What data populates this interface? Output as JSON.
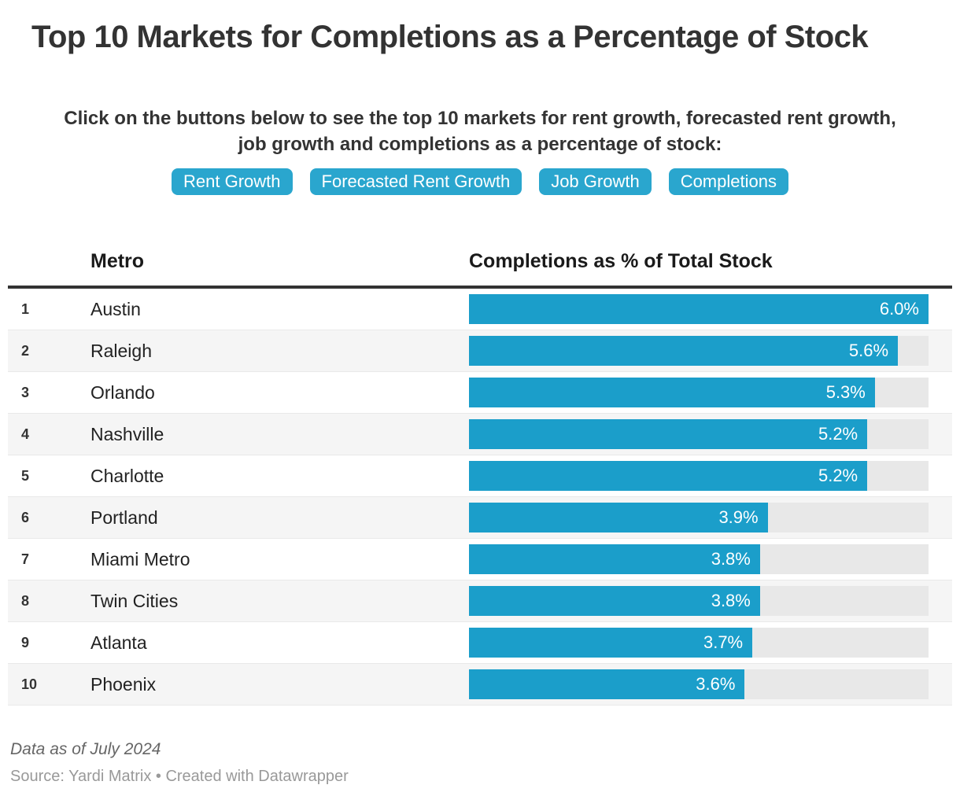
{
  "header": {
    "title": "Top 10 Markets for Completions as a Percentage of Stock",
    "subtitle_lines": [
      "Click on the buttons below to see the top 10 markets for rent growth, forecasted rent growth,",
      "job growth and completions as a percentage of stock:"
    ]
  },
  "buttons": [
    "Rent Growth",
    "Forecasted Rent Growth",
    "Job Growth",
    "Completions"
  ],
  "table": {
    "columns": {
      "metro": "Metro",
      "value": "Completions as % of Total Stock"
    },
    "rows": [
      {
        "rank": "1",
        "metro": "Austin",
        "value": 6.0,
        "value_label": "6.0%"
      },
      {
        "rank": "2",
        "metro": "Raleigh",
        "value": 5.6,
        "value_label": "5.6%"
      },
      {
        "rank": "3",
        "metro": "Orlando",
        "value": 5.3,
        "value_label": "5.3%"
      },
      {
        "rank": "4",
        "metro": "Nashville",
        "value": 5.2,
        "value_label": "5.2%"
      },
      {
        "rank": "5",
        "metro": "Charlotte",
        "value": 5.2,
        "value_label": "5.2%"
      },
      {
        "rank": "6",
        "metro": "Portland",
        "value": 3.9,
        "value_label": "3.9%"
      },
      {
        "rank": "7",
        "metro": "Miami Metro",
        "value": 3.8,
        "value_label": "3.8%"
      },
      {
        "rank": "8",
        "metro": "Twin Cities",
        "value": 3.8,
        "value_label": "3.8%"
      },
      {
        "rank": "9",
        "metro": "Atlanta",
        "value": 3.7,
        "value_label": "3.7%"
      },
      {
        "rank": "10",
        "metro": "Phoenix",
        "value": 3.6,
        "value_label": "3.6%"
      }
    ]
  },
  "footer": {
    "note": "Data as of July 2024",
    "source": "Source: Yardi Matrix • Created with Datawrapper"
  },
  "colors": {
    "bar": "#1b9eca",
    "bar_track": "#e8e8e8",
    "button": "#2aa6ce",
    "alt_row": "#f5f5f5",
    "header_rule": "#333333"
  },
  "chart_data": {
    "type": "bar",
    "orientation": "horizontal",
    "title": "Top 10 Markets for Completions as a Percentage of Stock",
    "categories": [
      "Austin",
      "Raleigh",
      "Orlando",
      "Nashville",
      "Charlotte",
      "Portland",
      "Miami Metro",
      "Twin Cities",
      "Atlanta",
      "Phoenix"
    ],
    "values": [
      6.0,
      5.6,
      5.3,
      5.2,
      5.2,
      3.9,
      3.8,
      3.8,
      3.7,
      3.6
    ],
    "value_labels": [
      "6.0%",
      "5.6%",
      "5.3%",
      "5.2%",
      "5.2%",
      "3.9%",
      "3.8%",
      "3.8%",
      "3.7%",
      "3.6%"
    ],
    "xlabel": "Completions as % of Total Stock",
    "ylabel": "Metro",
    "xlim": [
      0,
      6.0
    ],
    "grid": false,
    "legend": false,
    "bar_color": "#1b9eca",
    "controls": [
      "Rent Growth",
      "Forecasted Rent Growth",
      "Job Growth",
      "Completions"
    ],
    "notes": "Data as of July 2024",
    "source": "Source: Yardi Matrix • Created with Datawrapper"
  }
}
